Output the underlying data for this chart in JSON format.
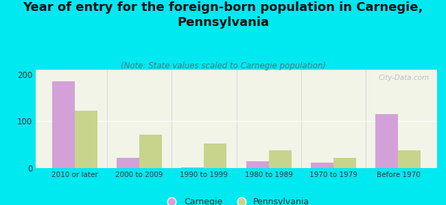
{
  "title": "Year of entry for the foreign-born population in Carnegie,\nPennsylvania",
  "subtitle": "(Note: State values scaled to Carnegie population)",
  "categories": [
    "2010 or later",
    "2000 to 2009",
    "1990 to 1999",
    "1980 to 1989",
    "1970 to 1979",
    "Before 1970"
  ],
  "carnegie_values": [
    185,
    22,
    2,
    15,
    11,
    115
  ],
  "pennsylvania_values": [
    122,
    72,
    53,
    38,
    22,
    38
  ],
  "carnegie_color": "#d4a0d8",
  "pennsylvania_color": "#c8d48c",
  "background_color": "#00e8f0",
  "plot_bg_color": "#f2f4e8",
  "ylim": [
    0,
    210
  ],
  "yticks": [
    0,
    100,
    200
  ],
  "bar_width": 0.35,
  "title_fontsize": 13,
  "subtitle_fontsize": 8.5,
  "legend_label_carnegie": "Carnegie",
  "legend_label_pennsylvania": "Pennsylvania",
  "watermark": "City-Data.com"
}
